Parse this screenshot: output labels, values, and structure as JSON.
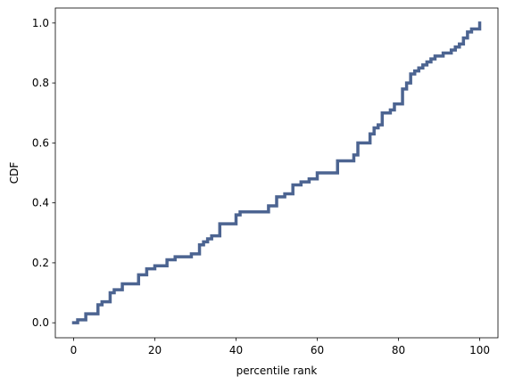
{
  "chart_data": {
    "type": "line",
    "drawstyle": "steps",
    "title": "",
    "xlabel": "percentile rank",
    "ylabel": "CDF",
    "xlim": [
      -4.5,
      104.5
    ],
    "ylim": [
      -0.05,
      1.05
    ],
    "x_ticks": [
      0,
      20,
      40,
      60,
      80,
      100
    ],
    "x_tick_labels": [
      "0",
      "20",
      "40",
      "60",
      "80",
      "100"
    ],
    "y_ticks": [
      0.0,
      0.2,
      0.4,
      0.6,
      0.8,
      1.0
    ],
    "y_tick_labels": [
      "0.0",
      "0.2",
      "0.4",
      "0.6",
      "0.8",
      "1.0"
    ],
    "grid": false,
    "series": [
      {
        "color": "#4c6491",
        "x": [
          0,
          1,
          3,
          6,
          7,
          9,
          10,
          12,
          16,
          18,
          20,
          23,
          25,
          29,
          31,
          32,
          33,
          34,
          36,
          40,
          41,
          48,
          50,
          52,
          54,
          56,
          58,
          60,
          62,
          65,
          69,
          70,
          73,
          74,
          75,
          76,
          78,
          79,
          81,
          82,
          83,
          84,
          85,
          86,
          87,
          88,
          89,
          91,
          92,
          93,
          94,
          95,
          96,
          97,
          98,
          99,
          100
        ],
        "y": [
          0.0,
          0.01,
          0.03,
          0.06,
          0.07,
          0.1,
          0.11,
          0.13,
          0.16,
          0.18,
          0.19,
          0.21,
          0.22,
          0.23,
          0.26,
          0.27,
          0.28,
          0.29,
          0.33,
          0.36,
          0.37,
          0.39,
          0.42,
          0.43,
          0.46,
          0.47,
          0.48,
          0.5,
          0.5,
          0.54,
          0.56,
          0.6,
          0.63,
          0.65,
          0.66,
          0.7,
          0.71,
          0.73,
          0.78,
          0.8,
          0.83,
          0.84,
          0.85,
          0.86,
          0.87,
          0.88,
          0.89,
          0.9,
          0.9,
          0.91,
          0.92,
          0.93,
          0.95,
          0.97,
          0.98,
          0.98,
          1.0
        ]
      }
    ]
  }
}
